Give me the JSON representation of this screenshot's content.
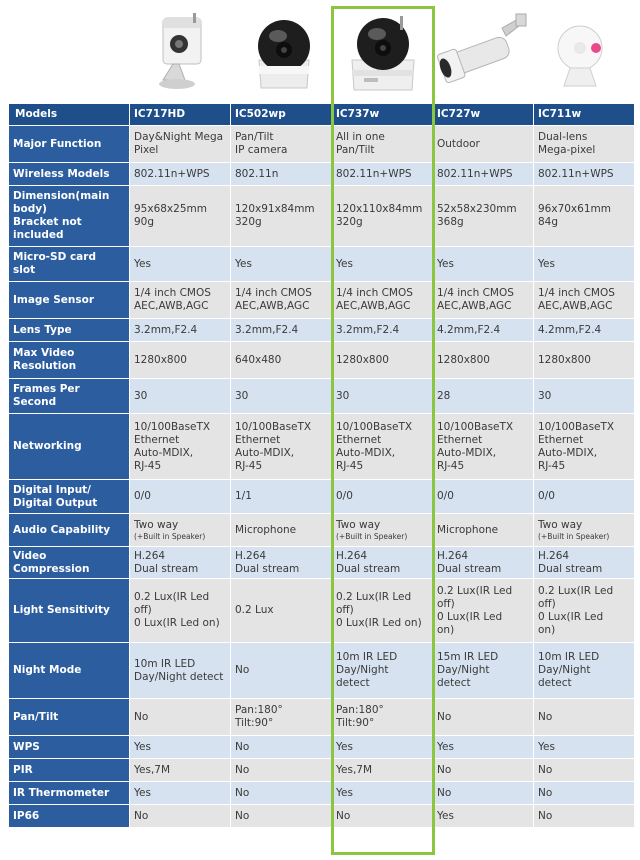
{
  "colors": {
    "header_bg": "#1f4f8b",
    "label_bg": "#2c5d9f",
    "row_gray": "#e4e4e4",
    "row_blue": "#d6e2ef",
    "highlight": "#8cc63f"
  },
  "products": [
    {
      "model": "IC717HD",
      "icon": "cube-camera-with-stand-icon"
    },
    {
      "model": "IC502wp",
      "icon": "dome-pan-tilt-camera-icon"
    },
    {
      "model": "IC737w",
      "icon": "dome-pan-tilt-camera-icon",
      "highlighted": true
    },
    {
      "model": "IC727w",
      "icon": "bullet-outdoor-camera-icon"
    },
    {
      "model": "IC711w",
      "icon": "round-mini-camera-icon"
    }
  ],
  "table": {
    "corner_label": "Models",
    "columns": [
      "IC717HD",
      "IC502wp",
      "IC737w",
      "IC727w",
      "IC711w"
    ],
    "rows": [
      {
        "label": [
          "Major Function"
        ],
        "cells": [
          [
            [
              "Day&Night Mega",
              "Pixel"
            ]
          ],
          [
            [
              "Pan/Tilt",
              "IP camera"
            ]
          ],
          [
            [
              "All in one",
              "Pan/Tilt"
            ]
          ],
          [
            [
              "Outdoor"
            ]
          ],
          [
            [
              "Dual-lens",
              "Mega-pixel"
            ]
          ]
        ]
      },
      {
        "label": [
          "Wireless Models"
        ],
        "cells": [
          [
            [
              "802.11n+WPS"
            ]
          ],
          [
            [
              "802.11n"
            ]
          ],
          [
            [
              "802.11n+WPS"
            ]
          ],
          [
            [
              "802.11n+WPS"
            ]
          ],
          [
            [
              "802.11n+WPS"
            ]
          ]
        ]
      },
      {
        "label": [
          "Dimension(main",
          "body)",
          "Bracket not",
          "included"
        ],
        "cells": [
          [
            [
              "95x68x25mm",
              "90g"
            ]
          ],
          [
            [
              "120x91x84mm",
              "320g"
            ]
          ],
          [
            [
              "120x110x84mm",
              "320g"
            ]
          ],
          [
            [
              "52x58x230mm",
              "368g"
            ]
          ],
          [
            [
              "96x70x61mm",
              "84g"
            ]
          ]
        ]
      },
      {
        "label": [
          "Micro-SD card",
          "slot"
        ],
        "cells": [
          [
            [
              "Yes"
            ]
          ],
          [
            [
              "Yes"
            ]
          ],
          [
            [
              "Yes"
            ]
          ],
          [
            [
              "Yes"
            ]
          ],
          [
            [
              "Yes"
            ]
          ]
        ]
      },
      {
        "label": [
          "Image Sensor"
        ],
        "cells": [
          [
            [
              "1/4 inch CMOS",
              "AEC,AWB,AGC"
            ]
          ],
          [
            [
              "1/4 inch CMOS",
              "AEC,AWB,AGC"
            ]
          ],
          [
            [
              "1/4 inch CMOS",
              "AEC,AWB,AGC"
            ]
          ],
          [
            [
              "1/4 inch CMOS",
              "AEC,AWB,AGC"
            ]
          ],
          [
            [
              "1/4 inch CMOS",
              "AEC,AWB,AGC"
            ]
          ]
        ]
      },
      {
        "label": [
          "Lens Type"
        ],
        "cells": [
          [
            [
              "3.2mm,F2.4"
            ]
          ],
          [
            [
              "3.2mm,F2.4"
            ]
          ],
          [
            [
              "3.2mm,F2.4"
            ]
          ],
          [
            [
              "4.2mm,F2.4"
            ]
          ],
          [
            [
              "4.2mm,F2.4"
            ]
          ]
        ]
      },
      {
        "label": [
          "Max Video",
          "Resolution"
        ],
        "cells": [
          [
            [
              "1280x800"
            ]
          ],
          [
            [
              "640x480"
            ]
          ],
          [
            [
              "1280x800"
            ]
          ],
          [
            [
              "1280x800"
            ]
          ],
          [
            [
              "1280x800"
            ]
          ]
        ]
      },
      {
        "label": [
          "Frames Per",
          "Second"
        ],
        "cells": [
          [
            [
              "30"
            ]
          ],
          [
            [
              "30"
            ]
          ],
          [
            [
              "30"
            ]
          ],
          [
            [
              "28"
            ]
          ],
          [
            [
              "30"
            ]
          ]
        ]
      },
      {
        "label": [
          "Networking"
        ],
        "cells": [
          [
            [
              "10/100BaseTX",
              "Ethernet",
              "Auto-MDIX,",
              "RJ-45"
            ]
          ],
          [
            [
              "10/100BaseTX",
              "Ethernet",
              "Auto-MDIX,",
              "RJ-45"
            ]
          ],
          [
            [
              "10/100BaseTX",
              "Ethernet",
              "Auto-MDIX,",
              "RJ-45"
            ]
          ],
          [
            [
              "10/100BaseTX",
              "Ethernet",
              "Auto-MDIX,",
              "RJ-45"
            ]
          ],
          [
            [
              "10/100BaseTX",
              "Ethernet",
              "Auto-MDIX,",
              "RJ-45"
            ]
          ]
        ]
      },
      {
        "label": [
          "Digital Input/",
          "Digital Output"
        ],
        "cells": [
          [
            [
              "0/0"
            ]
          ],
          [
            [
              "1/1"
            ]
          ],
          [
            [
              "0/0"
            ]
          ],
          [
            [
              "0/0"
            ]
          ],
          [
            [
              "0/0"
            ]
          ]
        ]
      },
      {
        "label": [
          "Audio Capability"
        ],
        "cells": [
          [
            [
              "Two way"
            ],
            [
              "(+Built in Speaker)"
            ]
          ],
          [
            [
              "Microphone"
            ]
          ],
          [
            [
              "Two way"
            ],
            [
              "(+Built in Speaker)"
            ]
          ],
          [
            [
              "Microphone"
            ]
          ],
          [
            [
              "Two way"
            ],
            [
              "(+Built in Speaker)"
            ]
          ]
        ]
      },
      {
        "label": [
          "Video",
          "Compression"
        ],
        "cells": [
          [
            [
              "H.264",
              "Dual stream"
            ]
          ],
          [
            [
              "H.264",
              "Dual stream"
            ]
          ],
          [
            [
              "H.264",
              "Dual stream"
            ]
          ],
          [
            [
              "H.264",
              "Dual stream"
            ]
          ],
          [
            [
              "H.264",
              "Dual stream"
            ]
          ]
        ]
      },
      {
        "label": [
          "Light Sensitivity"
        ],
        "cells": [
          [
            [
              "0.2 Lux(IR Led",
              "off)",
              "0 Lux(IR Led on)"
            ]
          ],
          [
            [
              "0.2 Lux"
            ]
          ],
          [
            [
              "0.2 Lux(IR Led",
              "off)",
              "0 Lux(IR Led on)"
            ]
          ],
          [
            [
              "0.2 Lux(IR Led",
              "off)",
              "0 Lux(IR Led",
              "on)"
            ]
          ],
          [
            [
              "0.2 Lux(IR Led",
              "off)",
              "0 Lux(IR Led",
              "on)"
            ]
          ]
        ]
      },
      {
        "label": [
          "Night Mode"
        ],
        "cells": [
          [
            [
              "10m IR LED",
              "Day/Night detect"
            ]
          ],
          [
            [
              "No"
            ]
          ],
          [
            [
              "10m IR LED",
              "Day/Night",
              "detect"
            ]
          ],
          [
            [
              "15m IR LED",
              "Day/Night",
              "detect"
            ]
          ],
          [
            [
              "10m IR LED",
              "Day/Night",
              "detect"
            ]
          ]
        ]
      },
      {
        "label": [
          "Pan/Tilt"
        ],
        "cells": [
          [
            [
              "No"
            ]
          ],
          [
            [
              "Pan:180°",
              "Tilt:90°"
            ]
          ],
          [
            [
              "Pan:180°",
              "Tilt:90°"
            ]
          ],
          [
            [
              "No"
            ]
          ],
          [
            [
              "No"
            ]
          ]
        ]
      },
      {
        "label": [
          "WPS"
        ],
        "cells": [
          [
            [
              "Yes"
            ]
          ],
          [
            [
              "No"
            ]
          ],
          [
            [
              "Yes"
            ]
          ],
          [
            [
              "Yes"
            ]
          ],
          [
            [
              "Yes"
            ]
          ]
        ]
      },
      {
        "label": [
          "PIR"
        ],
        "cells": [
          [
            [
              "Yes,7M"
            ]
          ],
          [
            [
              "No"
            ]
          ],
          [
            [
              "Yes,7M"
            ]
          ],
          [
            [
              "No"
            ]
          ],
          [
            [
              "No"
            ]
          ]
        ]
      },
      {
        "label": [
          "IR Thermometer"
        ],
        "cells": [
          [
            [
              "Yes"
            ]
          ],
          [
            [
              "No"
            ]
          ],
          [
            [
              "Yes"
            ]
          ],
          [
            [
              "No"
            ]
          ],
          [
            [
              "No"
            ]
          ]
        ]
      },
      {
        "label": [
          "IP66"
        ],
        "cells": [
          [
            [
              "No"
            ]
          ],
          [
            [
              "No"
            ]
          ],
          [
            [
              "No"
            ]
          ],
          [
            [
              "Yes"
            ]
          ],
          [
            [
              "No"
            ]
          ]
        ]
      }
    ]
  }
}
